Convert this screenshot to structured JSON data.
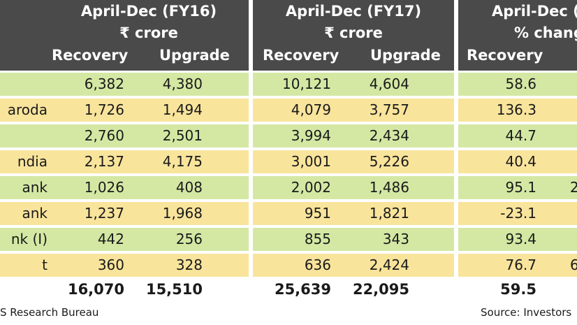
{
  "chart_data": {
    "type": "table",
    "groups": [
      {
        "title": "April-Dec (FY16)",
        "unit": "₹ crore",
        "columns": [
          "Recovery",
          "Upgrade"
        ]
      },
      {
        "title": "April-Dec (FY17)",
        "unit": "₹ crore",
        "columns": [
          "Recovery",
          "Upgrade"
        ]
      },
      {
        "title": "April-Dec (",
        "unit": "% chang",
        "columns": [
          "Recovery"
        ]
      }
    ],
    "rows": [
      {
        "bank": "",
        "values": [
          "6,382",
          "4,380",
          "10,121",
          "4,604",
          "58.6"
        ],
        "color": "green"
      },
      {
        "bank": "aroda",
        "values": [
          "1,726",
          "1,494",
          "4,079",
          "3,757",
          "136.3"
        ],
        "color": "yellow"
      },
      {
        "bank": "",
        "values": [
          "2,760",
          "2,501",
          "3,994",
          "2,434",
          "44.7"
        ],
        "color": "green"
      },
      {
        "bank": "ndia",
        "values": [
          "2,137",
          "4,175",
          "3,001",
          "5,226",
          "40.4"
        ],
        "color": "yellow"
      },
      {
        "bank": "ank",
        "values": [
          "1,026",
          "408",
          "2,002",
          "1,486",
          "95.1"
        ],
        "color": "green"
      },
      {
        "bank": "ank",
        "values": [
          "1,237",
          "1,968",
          "951",
          "1,821",
          "-23.1"
        ],
        "color": "yellow"
      },
      {
        "bank": "nk (I)",
        "values": [
          "442",
          "256",
          "855",
          "343",
          "93.4"
        ],
        "color": "green"
      },
      {
        "bank": "t",
        "values": [
          "360",
          "328",
          "636",
          "2,424",
          "76.7"
        ],
        "color": "yellow"
      }
    ],
    "total": {
      "values": [
        "16,070",
        "15,510",
        "25,639",
        "22,095",
        "59.5"
      ]
    },
    "edge_fragments": [
      "2",
      "6"
    ]
  },
  "footer": {
    "left": "S Research Bureau",
    "right": "Source: Investors"
  },
  "colors": {
    "header": "#4a4a4a",
    "green_row": "#d4e8a4",
    "yellow_row": "#f9e49c"
  }
}
